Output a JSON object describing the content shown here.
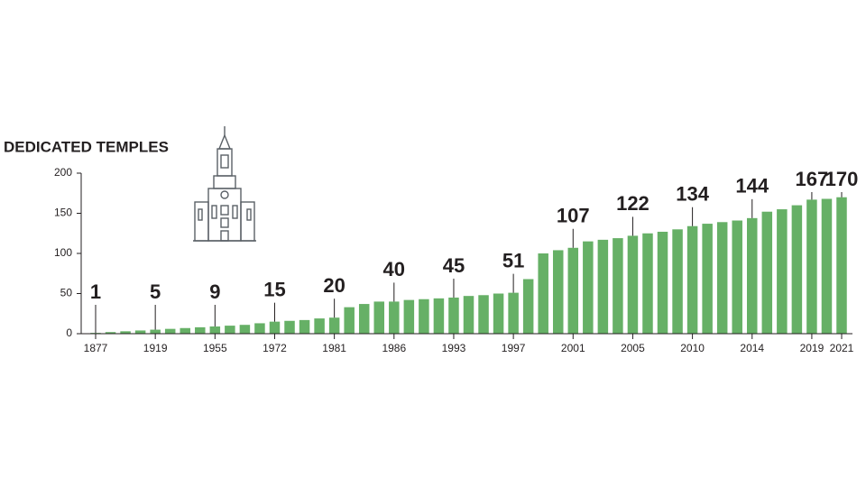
{
  "chart_data": {
    "type": "bar",
    "title": "DEDICATED TEMPLES",
    "categories": [
      "1877",
      null,
      null,
      null,
      "1919",
      null,
      null,
      null,
      "1955",
      null,
      null,
      null,
      "1972",
      null,
      null,
      null,
      "1981",
      null,
      null,
      null,
      "1986",
      null,
      null,
      null,
      "1993",
      null,
      null,
      null,
      "1997",
      null,
      null,
      null,
      "2001",
      null,
      null,
      null,
      "2005",
      null,
      null,
      null,
      "2010",
      null,
      null,
      null,
      "2014",
      null,
      null,
      null,
      "2019",
      null,
      "2021"
    ],
    "values": [
      1,
      2,
      3,
      4,
      5,
      6,
      7,
      8,
      9,
      10,
      11,
      13,
      15,
      16,
      17,
      19,
      20,
      33,
      37,
      40,
      40,
      42,
      43,
      44,
      45,
      47,
      48,
      50,
      51,
      68,
      100,
      104,
      107,
      115,
      117,
      119,
      122,
      125,
      127,
      130,
      134,
      137,
      139,
      141,
      144,
      152,
      155,
      160,
      167,
      168,
      170
    ],
    "value_labels": [
      "1",
      null,
      null,
      null,
      "5",
      null,
      null,
      null,
      "9",
      null,
      null,
      null,
      "15",
      null,
      null,
      null,
      "20",
      null,
      null,
      null,
      "40",
      null,
      null,
      null,
      "45",
      null,
      null,
      null,
      "51",
      null,
      null,
      null,
      "107",
      null,
      null,
      null,
      "122",
      null,
      null,
      null,
      "134",
      null,
      null,
      null,
      "144",
      null,
      null,
      null,
      "167",
      null,
      "170"
    ],
    "color": "#66b066",
    "ylim": [
      0,
      200
    ],
    "yticks": [
      0,
      50,
      100,
      150,
      200
    ],
    "grid": false
  }
}
